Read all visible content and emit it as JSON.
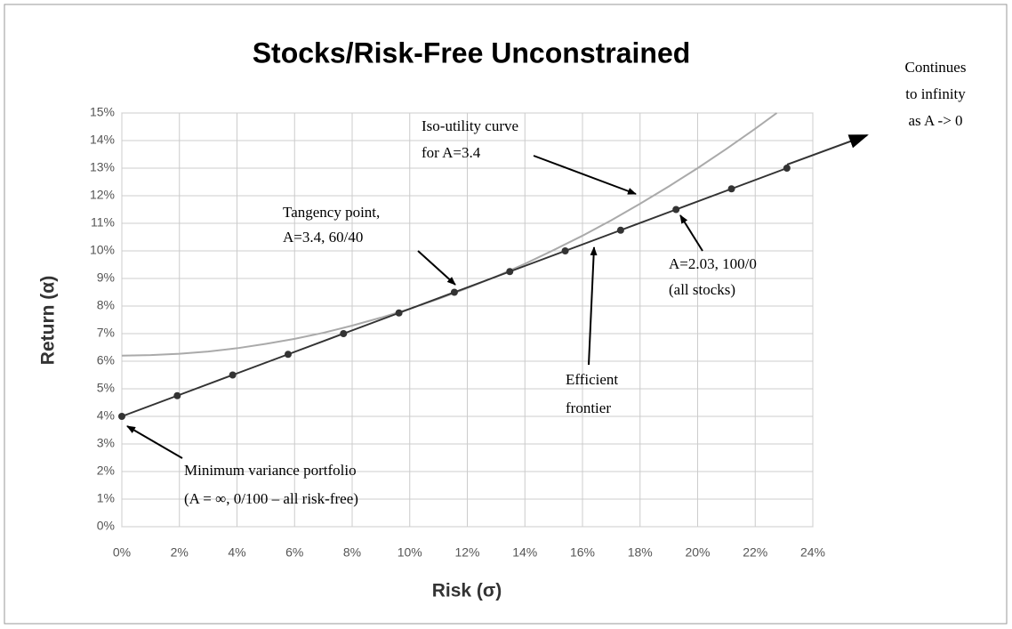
{
  "chart_data": {
    "type": "line",
    "title": "Stocks/Risk-Free Unconstrained",
    "x_label": "Risk (σ)",
    "y_label": "Return (α)",
    "xlim": [
      0,
      24
    ],
    "ylim": [
      0,
      15
    ],
    "xticks": [
      {
        "value": 0,
        "label": "0%"
      },
      {
        "value": 2,
        "label": "2%"
      },
      {
        "value": 4,
        "label": "4%"
      },
      {
        "value": 6,
        "label": "6%"
      },
      {
        "value": 8,
        "label": "8%"
      },
      {
        "value": 10,
        "label": "10%"
      },
      {
        "value": 12,
        "label": "12%"
      },
      {
        "value": 14,
        "label": "14%"
      },
      {
        "value": 16,
        "label": "16%"
      },
      {
        "value": 18,
        "label": "18%"
      },
      {
        "value": 20,
        "label": "20%"
      },
      {
        "value": 22,
        "label": "22%"
      },
      {
        "value": 24,
        "label": "24%"
      }
    ],
    "yticks": [
      {
        "value": 0,
        "label": "0%"
      },
      {
        "value": 1,
        "label": "1%"
      },
      {
        "value": 2,
        "label": "2%"
      },
      {
        "value": 3,
        "label": "3%"
      },
      {
        "value": 4,
        "label": "4%"
      },
      {
        "value": 5,
        "label": "5%"
      },
      {
        "value": 6,
        "label": "6%"
      },
      {
        "value": 7,
        "label": "7%"
      },
      {
        "value": 8,
        "label": "8%"
      },
      {
        "value": 9,
        "label": "9%"
      },
      {
        "value": 10,
        "label": "10%"
      },
      {
        "value": 11,
        "label": "11%"
      },
      {
        "value": 12,
        "label": "12%"
      },
      {
        "value": 13,
        "label": "13%"
      },
      {
        "value": 14,
        "label": "14%"
      },
      {
        "value": 15,
        "label": "15%"
      }
    ],
    "grid": true,
    "series": [
      {
        "color": "#aaaaaa",
        "markers": false,
        "x": [
          0,
          1,
          2,
          3,
          4,
          5,
          6,
          7,
          8,
          9,
          10,
          11,
          12,
          13,
          14,
          15,
          16,
          17,
          18,
          19,
          20,
          21,
          22,
          22.75
        ],
        "values": [
          6.2,
          6.22,
          6.27,
          6.35,
          6.47,
          6.63,
          6.81,
          7.03,
          7.29,
          7.58,
          7.9,
          8.26,
          8.65,
          9.07,
          9.53,
          10.03,
          10.55,
          11.11,
          11.71,
          12.34,
          13.0,
          13.7,
          14.43,
          15.0
        ]
      },
      {
        "color": "#333333",
        "markers": true,
        "x": [
          0,
          1.925,
          3.85,
          5.775,
          7.7,
          9.625,
          11.55,
          13.475,
          15.4,
          17.325,
          19.25,
          21.175,
          23.1
        ],
        "values": [
          4,
          4.75,
          5.5,
          6.25,
          7,
          7.75,
          8.5,
          9.25,
          10,
          10.75,
          11.5,
          12.25,
          13
        ]
      }
    ],
    "annotations": [
      [
        "Continues",
        "to infinity",
        "as A -> 0"
      ],
      [
        "Iso-utility curve",
        "for A=3.4"
      ],
      [
        "Tangency point,",
        "A=3.4, 60/40"
      ],
      [
        "A=2.03, 100/0",
        "(all stocks)"
      ],
      [
        "Efficient",
        "frontier"
      ],
      [
        "Minimum variance portfolio",
        "(A = ∞, 0/100 – all risk-free)"
      ]
    ]
  }
}
